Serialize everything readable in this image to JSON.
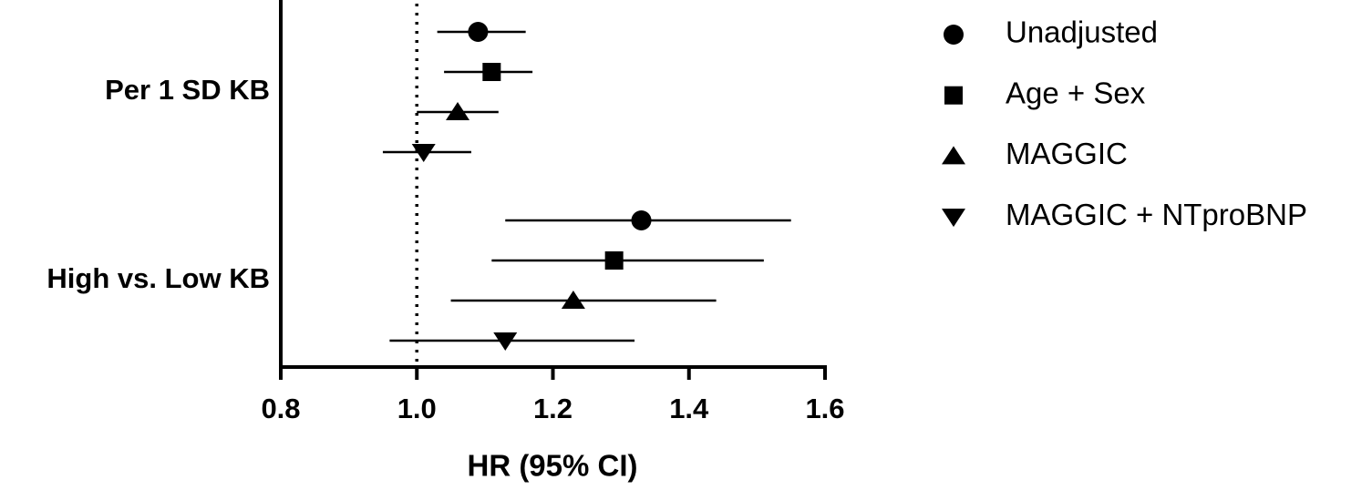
{
  "chart_data": {
    "type": "forest",
    "xlabel": "HR (95% CI)",
    "categories": [
      "Per 1 SD KB",
      "High vs. Low KB"
    ],
    "series": [
      {
        "name": "Unadjusted",
        "marker": "circle",
        "color": "#000000",
        "values": [
          1.09,
          1.33
        ],
        "lower": [
          1.03,
          1.13
        ],
        "upper": [
          1.16,
          1.55
        ]
      },
      {
        "name": "Age + Sex",
        "marker": "square",
        "color": "#000000",
        "values": [
          1.11,
          1.29
        ],
        "lower": [
          1.04,
          1.11
        ],
        "upper": [
          1.17,
          1.51
        ]
      },
      {
        "name": "MAGGIC",
        "marker": "triangle",
        "color": "#000000",
        "values": [
          1.06,
          1.23
        ],
        "lower": [
          1.0,
          1.05
        ],
        "upper": [
          1.12,
          1.44
        ]
      },
      {
        "name": "MAGGIC + NTproBNP",
        "marker": "triangle-down",
        "color": "#000000",
        "values": [
          1.01,
          1.13
        ],
        "lower": [
          0.95,
          0.96
        ],
        "upper": [
          1.08,
          1.32
        ]
      }
    ],
    "xlim": [
      0.8,
      1.6
    ],
    "xticks": [
      {
        "value": 0.8,
        "label": "0.8"
      },
      {
        "value": 1.0,
        "label": "1.0"
      },
      {
        "value": 1.2,
        "label": "1.2"
      },
      {
        "value": 1.4,
        "label": "1.4"
      },
      {
        "value": 1.6,
        "label": "1.6"
      }
    ],
    "reference_line": 1,
    "legend": "right"
  }
}
